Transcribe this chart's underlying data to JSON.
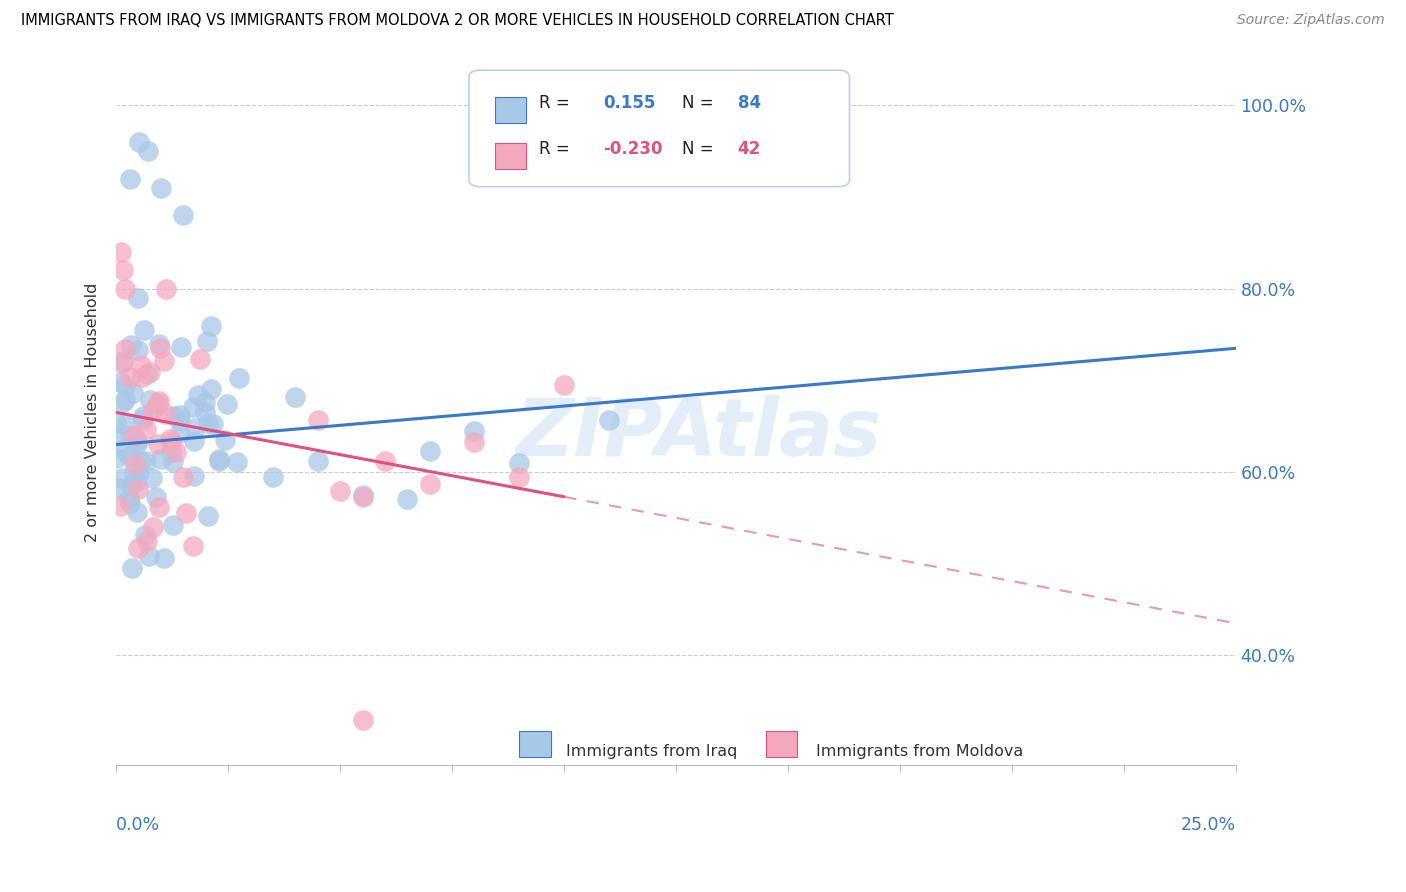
{
  "title": "IMMIGRANTS FROM IRAQ VS IMMIGRANTS FROM MOLDOVA 2 OR MORE VEHICLES IN HOUSEHOLD CORRELATION CHART",
  "source": "Source: ZipAtlas.com",
  "ylabel": "2 or more Vehicles in Household",
  "ytick_labels": [
    "40.0%",
    "60.0%",
    "80.0%",
    "100.0%"
  ],
  "ytick_vals": [
    40.0,
    60.0,
    80.0,
    100.0
  ],
  "xmin": 0.0,
  "xmax": 25.0,
  "ymin": 28.0,
  "ymax": 105.0,
  "iraq_color": "#a8c8e8",
  "moldova_color": "#f4a8be",
  "iraq_line_color": "#3a78c9",
  "moldova_line_color": "#e05080",
  "iraq_R": 0.155,
  "iraq_N": 84,
  "moldova_R": -0.23,
  "moldova_N": 42,
  "legend_label_iraq": "Immigrants from Iraq",
  "legend_label_moldova": "Immigrants from Moldova",
  "watermark": "ZIPAtlas",
  "iraq_trend_x0": 0.0,
  "iraq_trend_y0": 63.0,
  "iraq_trend_x1": 25.0,
  "iraq_trend_y1": 73.5,
  "moldova_trend_x0": 0.0,
  "moldova_trend_y0": 66.5,
  "moldova_trend_x1": 25.0,
  "moldova_trend_y1": 43.5,
  "moldova_solid_end_x": 10.0,
  "grid_color": "#cccccc",
  "grid_style": "--"
}
